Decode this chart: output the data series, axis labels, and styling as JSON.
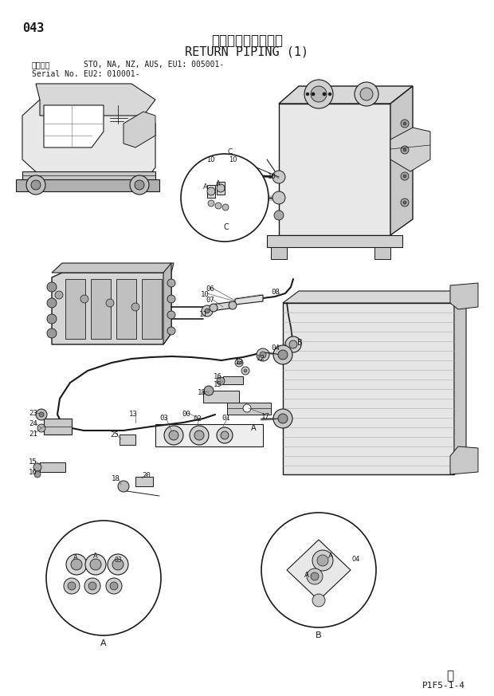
{
  "page_number": "043",
  "title_japanese": "リターン配管（１）",
  "title_english": "RETURN PIPING (1)",
  "serial_label": "適用号機",
  "serial_info_line1": "STO, NA, NZ, AUS, EU1: 005001-",
  "serial_info_line2": "EU2: 010001-",
  "serial_no_label": "Serial No.",
  "page_ref": "P1F5-1-4",
  "bg_color": "#ffffff",
  "lc": "#1a1a1a",
  "tc": "#1a1a1a",
  "gray1": "#c8c8c8",
  "gray2": "#a8a8a8",
  "gray3": "#e0e0e0",
  "watermark": "Ⓦ",
  "figw": 6.2,
  "figh": 8.73,
  "dpi": 100
}
